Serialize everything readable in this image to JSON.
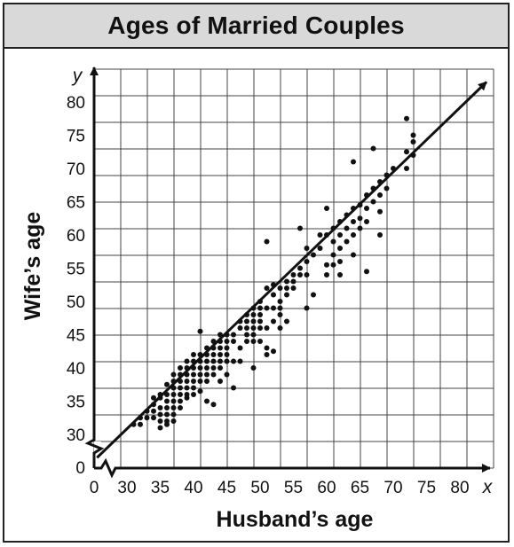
{
  "chart_data": {
    "type": "scatter",
    "title": "Ages of Married Couples",
    "xlabel": "Husband’s age",
    "ylabel": "Wife’s age",
    "x_var": "x",
    "y_var": "y",
    "xlim": [
      25,
      85
    ],
    "ylim": [
      27,
      83
    ],
    "axis_break": true,
    "x_ticks": [
      "0",
      "30",
      "35",
      "40",
      "45",
      "50",
      "55",
      "60",
      "65",
      "70",
      "75",
      "80"
    ],
    "y_ticks": [
      "0",
      "30",
      "35",
      "40",
      "45",
      "50",
      "55",
      "60",
      "65",
      "70",
      "75",
      "80"
    ],
    "grid": true,
    "trend_line": {
      "x": [
        25.5,
        84
      ],
      "y": [
        26.5,
        83
      ]
    },
    "points": [
      [
        31,
        31.5
      ],
      [
        32,
        31.5
      ],
      [
        32,
        32.5
      ],
      [
        33,
        33.5
      ],
      [
        33,
        32.5
      ],
      [
        34,
        34.5
      ],
      [
        34,
        33.5
      ],
      [
        34,
        35.5
      ],
      [
        34,
        32.5
      ],
      [
        35,
        34
      ],
      [
        35,
        35.5
      ],
      [
        35,
        33
      ],
      [
        35,
        36
      ],
      [
        35,
        31
      ],
      [
        35,
        32
      ],
      [
        36,
        36
      ],
      [
        36,
        35
      ],
      [
        36,
        34
      ],
      [
        36,
        33
      ],
      [
        36,
        32
      ],
      [
        36,
        37.5
      ],
      [
        36,
        31.5
      ],
      [
        37,
        37
      ],
      [
        37,
        36
      ],
      [
        37,
        35
      ],
      [
        37,
        34
      ],
      [
        37,
        33
      ],
      [
        37,
        32
      ],
      [
        37,
        38
      ],
      [
        37,
        39
      ],
      [
        38,
        38
      ],
      [
        38,
        37
      ],
      [
        38,
        36
      ],
      [
        38,
        35
      ],
      [
        38,
        34
      ],
      [
        38,
        40
      ],
      [
        38,
        39
      ],
      [
        39,
        39
      ],
      [
        39,
        38
      ],
      [
        39,
        37
      ],
      [
        39,
        36
      ],
      [
        39,
        35.5
      ],
      [
        39,
        40
      ],
      [
        39,
        41
      ],
      [
        40,
        40
      ],
      [
        40,
        39
      ],
      [
        40,
        38
      ],
      [
        40,
        37
      ],
      [
        40,
        41
      ],
      [
        40,
        42
      ],
      [
        40,
        36
      ],
      [
        41,
        41
      ],
      [
        41,
        40
      ],
      [
        41,
        39
      ],
      [
        41,
        38
      ],
      [
        41,
        42
      ],
      [
        41,
        45.5
      ],
      [
        41,
        36.5
      ],
      [
        42,
        42
      ],
      [
        42,
        41
      ],
      [
        42,
        40
      ],
      [
        42,
        39
      ],
      [
        42,
        43
      ],
      [
        42,
        38
      ],
      [
        42,
        35
      ],
      [
        43,
        43
      ],
      [
        43,
        42
      ],
      [
        43,
        41
      ],
      [
        43,
        40
      ],
      [
        43,
        39
      ],
      [
        43,
        44
      ],
      [
        43,
        34.5
      ],
      [
        44,
        44
      ],
      [
        44,
        43
      ],
      [
        44,
        42
      ],
      [
        44,
        41
      ],
      [
        44,
        40
      ],
      [
        44,
        45
      ],
      [
        44,
        38
      ],
      [
        45,
        45
      ],
      [
        45,
        44
      ],
      [
        45,
        43
      ],
      [
        45,
        42
      ],
      [
        45,
        41
      ],
      [
        45,
        39
      ],
      [
        46,
        45
      ],
      [
        46,
        44
      ],
      [
        46,
        41
      ],
      [
        46,
        37
      ],
      [
        47,
        47
      ],
      [
        47,
        46
      ],
      [
        47,
        43
      ],
      [
        47,
        41
      ],
      [
        48,
        48
      ],
      [
        48,
        47
      ],
      [
        48,
        46
      ],
      [
        48,
        45
      ],
      [
        48,
        44
      ],
      [
        49,
        49
      ],
      [
        49,
        48
      ],
      [
        49,
        47
      ],
      [
        49,
        46
      ],
      [
        49,
        45
      ],
      [
        49,
        44
      ],
      [
        49,
        40
      ],
      [
        50,
        49
      ],
      [
        50,
        48
      ],
      [
        50,
        47
      ],
      [
        50,
        46
      ],
      [
        50,
        44
      ],
      [
        50,
        50
      ],
      [
        51,
        52
      ],
      [
        51,
        49
      ],
      [
        51,
        46
      ],
      [
        51,
        43
      ],
      [
        51,
        59
      ],
      [
        51,
        42
      ],
      [
        52,
        52.5
      ],
      [
        52,
        51
      ],
      [
        52,
        49
      ],
      [
        52,
        47
      ],
      [
        52,
        42.5
      ],
      [
        53,
        52
      ],
      [
        53,
        50
      ],
      [
        53,
        49
      ],
      [
        53,
        48
      ],
      [
        53,
        46
      ],
      [
        54,
        53
      ],
      [
        54,
        52
      ],
      [
        54,
        51
      ],
      [
        54,
        47
      ],
      [
        55,
        54
      ],
      [
        55,
        53
      ],
      [
        55,
        52
      ],
      [
        56,
        55
      ],
      [
        56,
        54
      ],
      [
        56,
        61
      ],
      [
        57,
        58
      ],
      [
        57,
        56
      ],
      [
        57,
        54
      ],
      [
        57,
        49
      ],
      [
        58,
        57
      ],
      [
        58,
        51
      ],
      [
        59,
        58
      ],
      [
        59,
        60
      ],
      [
        60,
        60
      ],
      [
        60,
        55.5
      ],
      [
        60,
        54
      ],
      [
        60,
        64
      ],
      [
        61,
        61
      ],
      [
        61,
        59
      ],
      [
        61,
        57
      ],
      [
        61,
        55.5
      ],
      [
        62,
        62
      ],
      [
        62,
        60
      ],
      [
        62,
        58
      ],
      [
        62,
        56
      ],
      [
        62,
        54
      ],
      [
        63,
        63
      ],
      [
        63,
        61
      ],
      [
        63,
        59
      ],
      [
        64,
        64
      ],
      [
        64,
        62
      ],
      [
        64,
        60
      ],
      [
        64,
        57
      ],
      [
        64,
        71
      ],
      [
        65,
        64.5
      ],
      [
        65,
        62.5
      ],
      [
        65,
        61
      ],
      [
        66,
        66
      ],
      [
        66,
        64
      ],
      [
        66,
        62
      ],
      [
        66,
        54.5
      ],
      [
        67,
        67
      ],
      [
        67,
        65
      ],
      [
        67,
        73
      ],
      [
        68,
        68
      ],
      [
        68,
        66
      ],
      [
        68,
        63.5
      ],
      [
        68,
        60
      ],
      [
        69,
        67
      ],
      [
        69,
        69
      ],
      [
        70,
        70
      ],
      [
        72,
        70
      ],
      [
        72,
        72.5
      ],
      [
        72,
        77.5
      ],
      [
        73,
        72
      ],
      [
        73,
        74
      ],
      [
        73,
        75
      ]
    ]
  }
}
